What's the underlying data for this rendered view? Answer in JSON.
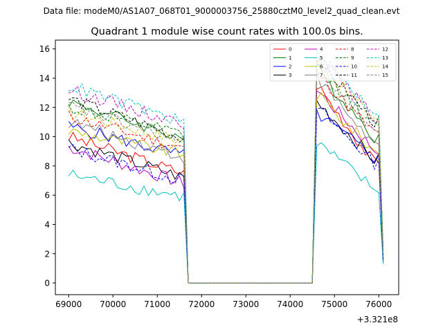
{
  "chart_data": {
    "type": "line",
    "suptitle": "Data file: modeM0/AS1A07_068T01_9000003756_25880cztM0_level2_quad_clean.evt",
    "title": "Quadrant 1 module wise count rates with 100.0s bins.",
    "xlabel": "",
    "ylabel": "",
    "x_offset_label": "+3.321e8",
    "xlim": [
      68700,
      76450
    ],
    "ylim": [
      -0.8,
      16.6
    ],
    "xticks": [
      69000,
      70000,
      71000,
      72000,
      73000,
      74000,
      75000,
      76000
    ],
    "yticks": [
      0,
      2,
      4,
      6,
      8,
      10,
      12,
      14,
      16
    ],
    "grid": false,
    "legend": {
      "location": "upper right",
      "columns": 4
    },
    "x_segments": {
      "first_observed": {
        "start": 69000,
        "end": 71600,
        "step": 100
      },
      "gap": [
        71700,
        74500
      ],
      "second_observed": {
        "start": 74600,
        "end": 75900,
        "step": 100
      },
      "last_partial_bin": 76100
    },
    "series": [
      {
        "name": "0",
        "color": "#ff0000",
        "dash": "solid",
        "seg1_start": 10.0,
        "seg1_end": 7.5,
        "seg2_start": 13.6,
        "seg2_end": 8.2,
        "last": 1.6
      },
      {
        "name": "1",
        "color": "#008000",
        "dash": "solid",
        "seg1_start": 12.4,
        "seg1_end": 9.9,
        "seg2_start": 14.6,
        "seg2_end": 10.0,
        "last": 1.8
      },
      {
        "name": "2",
        "color": "#0000ff",
        "dash": "solid",
        "seg1_start": 10.7,
        "seg1_end": 8.7,
        "seg2_start": 11.6,
        "seg2_end": 8.6,
        "last": 1.5
      },
      {
        "name": "3",
        "color": "#000000",
        "dash": "solid",
        "seg1_start": 9.6,
        "seg1_end": 7.2,
        "seg2_start": 12.4,
        "seg2_end": 8.4,
        "last": 1.4
      },
      {
        "name": "4",
        "color": "#bf00bf",
        "dash": "solid",
        "seg1_start": 9.3,
        "seg1_end": 6.8,
        "seg2_start": 13.2,
        "seg2_end": 9.1,
        "last": 1.6
      },
      {
        "name": "5",
        "color": "#00bfbf",
        "dash": "solid",
        "seg1_start": 7.4,
        "seg1_end": 5.9,
        "seg2_start": 9.6,
        "seg2_end": 6.4,
        "last": 1.3
      },
      {
        "name": "6",
        "color": "#bfbf00",
        "dash": "solid",
        "seg1_start": 10.4,
        "seg1_end": 8.8,
        "seg2_start": 12.9,
        "seg2_end": 9.0,
        "last": 1.9
      },
      {
        "name": "7",
        "color": "#808080",
        "dash": "solid",
        "seg1_start": 11.0,
        "seg1_end": 8.6,
        "seg2_start": 14.0,
        "seg2_end": 9.5,
        "last": 1.7
      },
      {
        "name": "8",
        "color": "#ff0000",
        "dash": "dashed",
        "seg1_start": 11.4,
        "seg1_end": 9.2,
        "seg2_start": 14.4,
        "seg2_end": 10.2,
        "last": 1.9
      },
      {
        "name": "9",
        "color": "#008000",
        "dash": "dashed",
        "seg1_start": 12.0,
        "seg1_end": 10.1,
        "seg2_start": 15.0,
        "seg2_end": 10.6,
        "last": 2.0
      },
      {
        "name": "10",
        "color": "#0000ff",
        "dash": "dashed",
        "seg1_start": 9.2,
        "seg1_end": 7.0,
        "seg2_start": 12.0,
        "seg2_end": 8.2,
        "last": 1.5
      },
      {
        "name": "11",
        "color": "#000000",
        "dash": "dashed",
        "seg1_start": 12.6,
        "seg1_end": 9.9,
        "seg2_start": 15.3,
        "seg2_end": 11.0,
        "last": 2.1
      },
      {
        "name": "12",
        "color": "#bf00bf",
        "dash": "dashed",
        "seg1_start": 13.2,
        "seg1_end": 10.9,
        "seg2_start": 15.6,
        "seg2_end": 11.3,
        "last": 2.2
      },
      {
        "name": "13",
        "color": "#00bfbf",
        "dash": "dashed",
        "seg1_start": 13.5,
        "seg1_end": 11.0,
        "seg2_start": 15.6,
        "seg2_end": 11.7,
        "last": 2.3
      },
      {
        "name": "14",
        "color": "#bfbf00",
        "dash": "dashed",
        "seg1_start": 11.7,
        "seg1_end": 9.7,
        "seg2_start": 15.0,
        "seg2_end": 11.3,
        "last": 2.0
      },
      {
        "name": "15",
        "color": "#808080",
        "dash": "dashed",
        "seg1_start": 12.1,
        "seg1_end": 9.6,
        "seg2_start": 14.8,
        "seg2_end": 10.4,
        "last": 1.8
      }
    ]
  }
}
